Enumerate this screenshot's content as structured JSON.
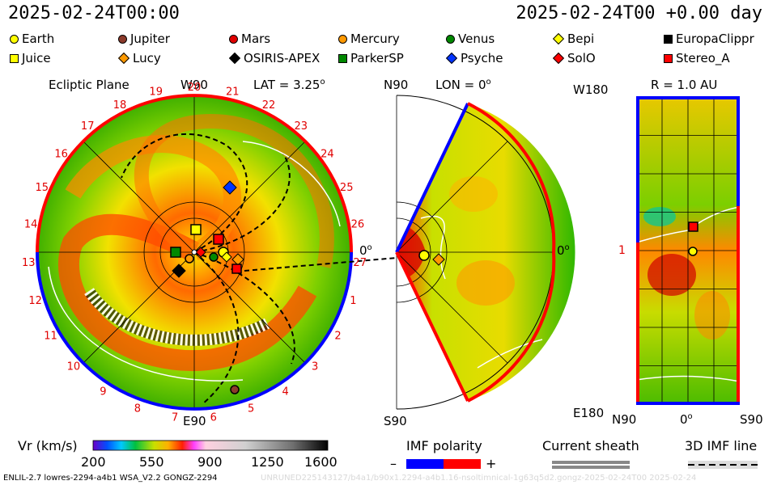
{
  "header": {
    "left_timestamp": "2025-02-24T00:00",
    "right_timestamp": "2025-02-24T00 +0.00 day"
  },
  "legend": [
    {
      "label": "Earth",
      "shape": "circle",
      "color": "#ffff00"
    },
    {
      "label": "Jupiter",
      "shape": "circle",
      "color": "#8b3a2b"
    },
    {
      "label": "Mars",
      "shape": "circle",
      "color": "#e00000"
    },
    {
      "label": "Mercury",
      "shape": "circle",
      "color": "#ff9900"
    },
    {
      "label": "Venus",
      "shape": "circle",
      "color": "#008800"
    },
    {
      "label": "Bepi",
      "shape": "diamond",
      "color": "#ffff00"
    },
    {
      "label": "EuropaClippr",
      "shape": "square",
      "color": "#000000"
    },
    {
      "label": "Juice",
      "shape": "square",
      "color": "#ffff00"
    },
    {
      "label": "Lucy",
      "shape": "diamond",
      "color": "#ff9900"
    },
    {
      "label": "OSIRIS-APEX",
      "shape": "diamond",
      "color": "#000000"
    },
    {
      "label": "ParkerSP",
      "shape": "square",
      "color": "#008800"
    },
    {
      "label": "Psyche",
      "shape": "diamond",
      "color": "#0033ff"
    },
    {
      "label": "SolO",
      "shape": "diamond",
      "color": "#ff0000"
    },
    {
      "label": "Stereo_A",
      "shape": "square",
      "color": "#ff0000"
    }
  ],
  "ecliptic": {
    "title": "Ecliptic Plane",
    "top_label": "W90",
    "lat_label": "LAT = 3.25",
    "lat_sup": "o",
    "bottom_label": "E90",
    "right_label": "0",
    "right_sup": "o",
    "ring_numbers": [
      "20",
      "21",
      "22",
      "23",
      "24",
      "25",
      "26",
      "27",
      "1",
      "2",
      "3",
      "4",
      "5",
      "6",
      "7",
      "8",
      "9",
      "10",
      "11",
      "12",
      "13",
      "14",
      "15",
      "16",
      "17",
      "18",
      "19"
    ]
  },
  "meridional": {
    "top_label": "N90",
    "lon_label": "LON = 0",
    "lon_sup": "o",
    "bottom_label": "S90",
    "right_label": "0",
    "right_sup": "o"
  },
  "shell": {
    "title": "R = 1.0 AU",
    "top_label": "W180",
    "bottom_label": "E180",
    "left_mark": "1",
    "x_labels": [
      "N90",
      "0",
      "S90"
    ],
    "x_mid_sup": "o"
  },
  "colorbar": {
    "label": "Vr (km/s)",
    "ticks": [
      "200",
      "550",
      "900",
      "1250",
      "1600"
    ]
  },
  "imf": {
    "title": "IMF polarity",
    "minus": "–",
    "plus": "+",
    "neg_color": "#0000ff",
    "pos_color": "#ff0000"
  },
  "current_sheath": {
    "title": "Current sheath"
  },
  "imf_line": {
    "title": "3D IMF line"
  },
  "footer": {
    "left": "ENLIL-2.7 lowres-2294-a4b1 WSA_V2.2 GONGZ-2294",
    "right": "UNRUNED225143127/b4a1/b90x1.2294-a4b1.16-nsoltimnical-1g63q5d2.gongz-2025-02-24T00   2025-02-24"
  }
}
